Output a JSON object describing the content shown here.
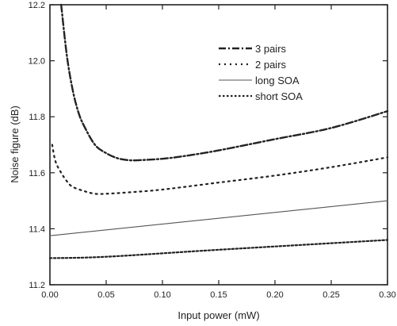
{
  "chart_data": {
    "type": "line",
    "title": "",
    "xlabel": "Input power (mW)",
    "ylabel": "Noise figure (dB)",
    "xlim": [
      0.0,
      0.3
    ],
    "ylim": [
      11.2,
      12.2
    ],
    "x_ticks": [
      0.0,
      0.05,
      0.1,
      0.15,
      0.2,
      0.25,
      0.3
    ],
    "x_tick_labels": [
      "0.00",
      "0.05",
      "0.10",
      "0.15",
      "0.20",
      "0.25",
      "0.30"
    ],
    "y_ticks": [
      11.2,
      11.4,
      11.6,
      11.8,
      12.0,
      12.2
    ],
    "y_tick_labels": [
      "11.2",
      "11.4",
      "11.6",
      "11.8",
      "12.0",
      "12.2"
    ],
    "grid": false,
    "legend_position": "top-right",
    "series": [
      {
        "name": "3 pairs",
        "line_style": "dash-dot",
        "color": "#222222",
        "points": [
          [
            0.01,
            12.2
          ],
          [
            0.015,
            12.02
          ],
          [
            0.02,
            11.9
          ],
          [
            0.025,
            11.82
          ],
          [
            0.03,
            11.77
          ],
          [
            0.04,
            11.7
          ],
          [
            0.05,
            11.67
          ],
          [
            0.06,
            11.652
          ],
          [
            0.07,
            11.645
          ],
          [
            0.08,
            11.645
          ],
          [
            0.1,
            11.65
          ],
          [
            0.12,
            11.66
          ],
          [
            0.15,
            11.68
          ],
          [
            0.2,
            11.72
          ],
          [
            0.25,
            11.76
          ],
          [
            0.3,
            11.82
          ]
        ]
      },
      {
        "name": "2 pairs",
        "line_style": "dotted",
        "color": "#222222",
        "points": [
          [
            0.002,
            11.7
          ],
          [
            0.005,
            11.64
          ],
          [
            0.01,
            11.6
          ],
          [
            0.015,
            11.57
          ],
          [
            0.02,
            11.55
          ],
          [
            0.03,
            11.535
          ],
          [
            0.04,
            11.525
          ],
          [
            0.05,
            11.525
          ],
          [
            0.07,
            11.53
          ],
          [
            0.1,
            11.54
          ],
          [
            0.15,
            11.565
          ],
          [
            0.2,
            11.59
          ],
          [
            0.25,
            11.62
          ],
          [
            0.3,
            11.655
          ]
        ]
      },
      {
        "name": "long SOA",
        "line_style": "solid-thin",
        "color": "#555555",
        "points": [
          [
            0.0,
            11.375
          ],
          [
            0.3,
            11.5
          ]
        ]
      },
      {
        "name": "short SOA",
        "line_style": "dense-dotted",
        "color": "#222222",
        "points": [
          [
            0.0,
            11.295
          ],
          [
            0.05,
            11.3
          ],
          [
            0.15,
            11.325
          ],
          [
            0.3,
            11.36
          ]
        ]
      }
    ]
  }
}
